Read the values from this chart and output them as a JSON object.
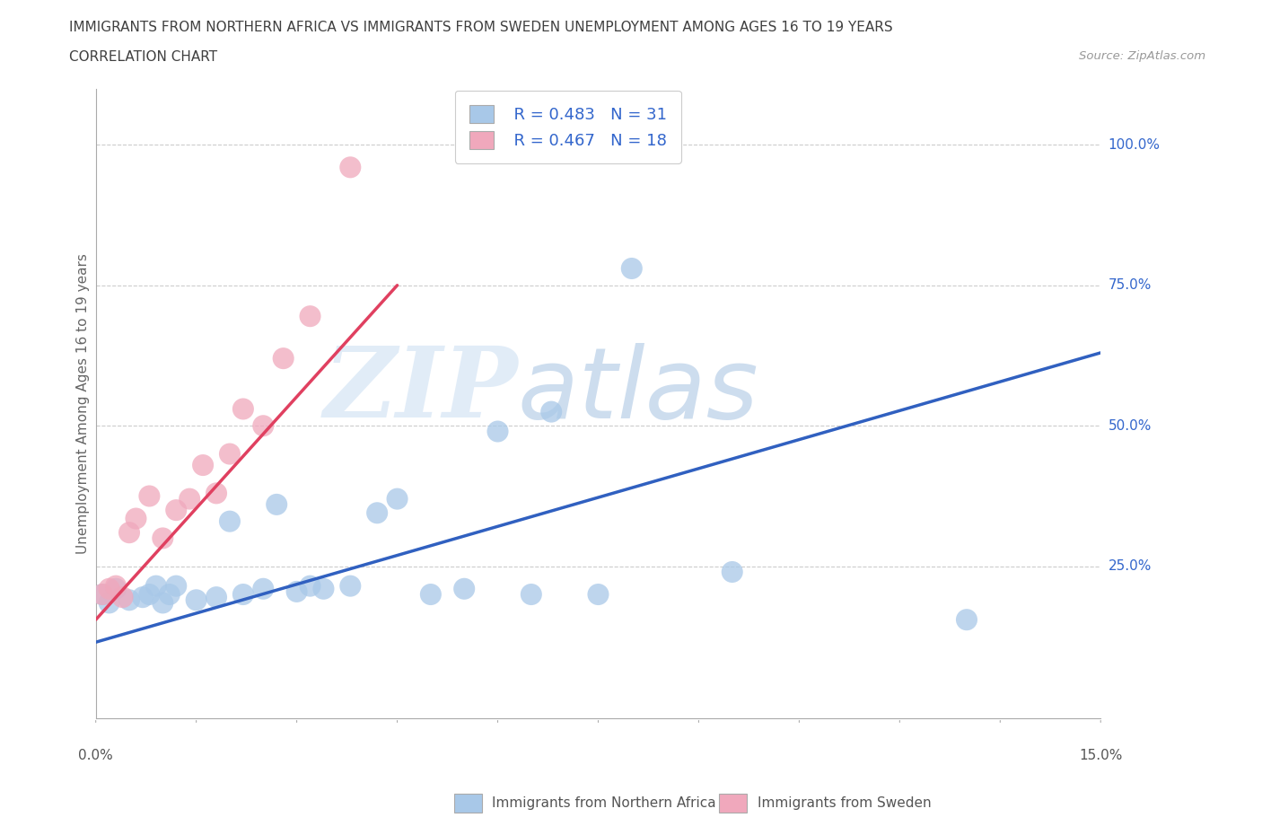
{
  "title_line1": "IMMIGRANTS FROM NORTHERN AFRICA VS IMMIGRANTS FROM SWEDEN UNEMPLOYMENT AMONG AGES 16 TO 19 YEARS",
  "title_line2": "CORRELATION CHART",
  "source_text": "Source: ZipAtlas.com",
  "ylabel": "Unemployment Among Ages 16 to 19 years",
  "watermark_zip": "ZIP",
  "watermark_atlas": "atlas",
  "xlim": [
    0.0,
    0.15
  ],
  "ylim": [
    -0.02,
    1.1
  ],
  "xtick_edge_labels": [
    "0.0%",
    "15.0%"
  ],
  "xtick_edge_values": [
    0.0,
    0.15
  ],
  "xtick_minor_values": [
    0.0,
    0.015,
    0.03,
    0.045,
    0.06,
    0.075,
    0.09,
    0.105,
    0.12,
    0.135,
    0.15
  ],
  "ytick_labels": [
    "25.0%",
    "50.0%",
    "75.0%",
    "100.0%"
  ],
  "ytick_values": [
    0.25,
    0.5,
    0.75,
    1.0
  ],
  "blue_color": "#a8c8e8",
  "pink_color": "#f0a8bc",
  "blue_line_color": "#3060c0",
  "pink_line_color": "#e04060",
  "legend_blue_label": "Immigrants from Northern Africa",
  "legend_pink_label": "Immigrants from Sweden",
  "R_blue": 0.483,
  "N_blue": 31,
  "R_pink": 0.467,
  "N_pink": 18,
  "blue_scatter_x": [
    0.001,
    0.002,
    0.003,
    0.005,
    0.007,
    0.008,
    0.009,
    0.01,
    0.011,
    0.012,
    0.015,
    0.018,
    0.02,
    0.022,
    0.025,
    0.027,
    0.03,
    0.032,
    0.034,
    0.038,
    0.042,
    0.045,
    0.05,
    0.055,
    0.06,
    0.065,
    0.068,
    0.075,
    0.08,
    0.095,
    0.13
  ],
  "blue_scatter_y": [
    0.2,
    0.185,
    0.21,
    0.19,
    0.195,
    0.2,
    0.215,
    0.185,
    0.2,
    0.215,
    0.19,
    0.195,
    0.33,
    0.2,
    0.21,
    0.36,
    0.205,
    0.215,
    0.21,
    0.215,
    0.345,
    0.37,
    0.2,
    0.21,
    0.49,
    0.2,
    0.525,
    0.2,
    0.78,
    0.24,
    0.155
  ],
  "pink_scatter_x": [
    0.001,
    0.002,
    0.003,
    0.004,
    0.005,
    0.006,
    0.008,
    0.01,
    0.012,
    0.014,
    0.016,
    0.018,
    0.02,
    0.022,
    0.025,
    0.028,
    0.032,
    0.038
  ],
  "pink_scatter_y": [
    0.2,
    0.21,
    0.215,
    0.195,
    0.31,
    0.335,
    0.375,
    0.3,
    0.35,
    0.37,
    0.43,
    0.38,
    0.45,
    0.53,
    0.5,
    0.62,
    0.695,
    0.96
  ],
  "blue_trend_x": [
    0.0,
    0.15
  ],
  "blue_trend_y": [
    0.115,
    0.63
  ],
  "pink_trend_x": [
    0.0,
    0.045
  ],
  "pink_trend_y": [
    0.155,
    0.75
  ],
  "background_color": "#ffffff",
  "grid_color": "#cccccc",
  "title_color": "#404040",
  "right_label_color": "#3366cc",
  "source_color": "#999999",
  "bottom_label_color": "#555555"
}
